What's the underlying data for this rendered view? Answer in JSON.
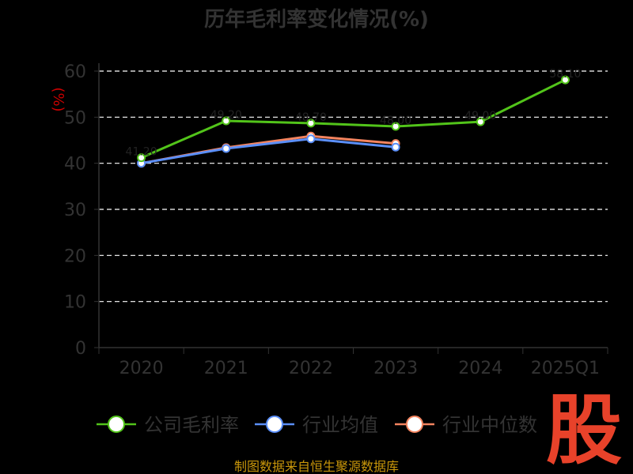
{
  "chart_data": {
    "type": "line",
    "title": "历年毛利率变化情况(%)",
    "ylabel": "(%)",
    "categories": [
      "2020",
      "2021",
      "2022",
      "2023",
      "2024",
      "2025Q1"
    ],
    "ylim": [
      0,
      60
    ],
    "yticks": [
      0,
      10,
      20,
      30,
      40,
      50,
      60
    ],
    "grid": true,
    "legend_position": "bottom",
    "series": [
      {
        "name": "公司毛利率",
        "color": "#52c41a",
        "values": [
          41.2,
          49.2,
          48.7,
          48.0,
          49.0,
          58.1
        ]
      },
      {
        "name": "行业均值",
        "color": "#5b8ff9",
        "values": [
          40.0,
          43.2,
          45.3,
          43.5,
          null,
          null
        ]
      },
      {
        "name": "行业中位数",
        "color": "#f4845f",
        "values": [
          40.0,
          43.4,
          45.9,
          44.3,
          null,
          null
        ]
      }
    ]
  },
  "source": "制图数据来自恒生聚源数据库",
  "logo_text": "股"
}
